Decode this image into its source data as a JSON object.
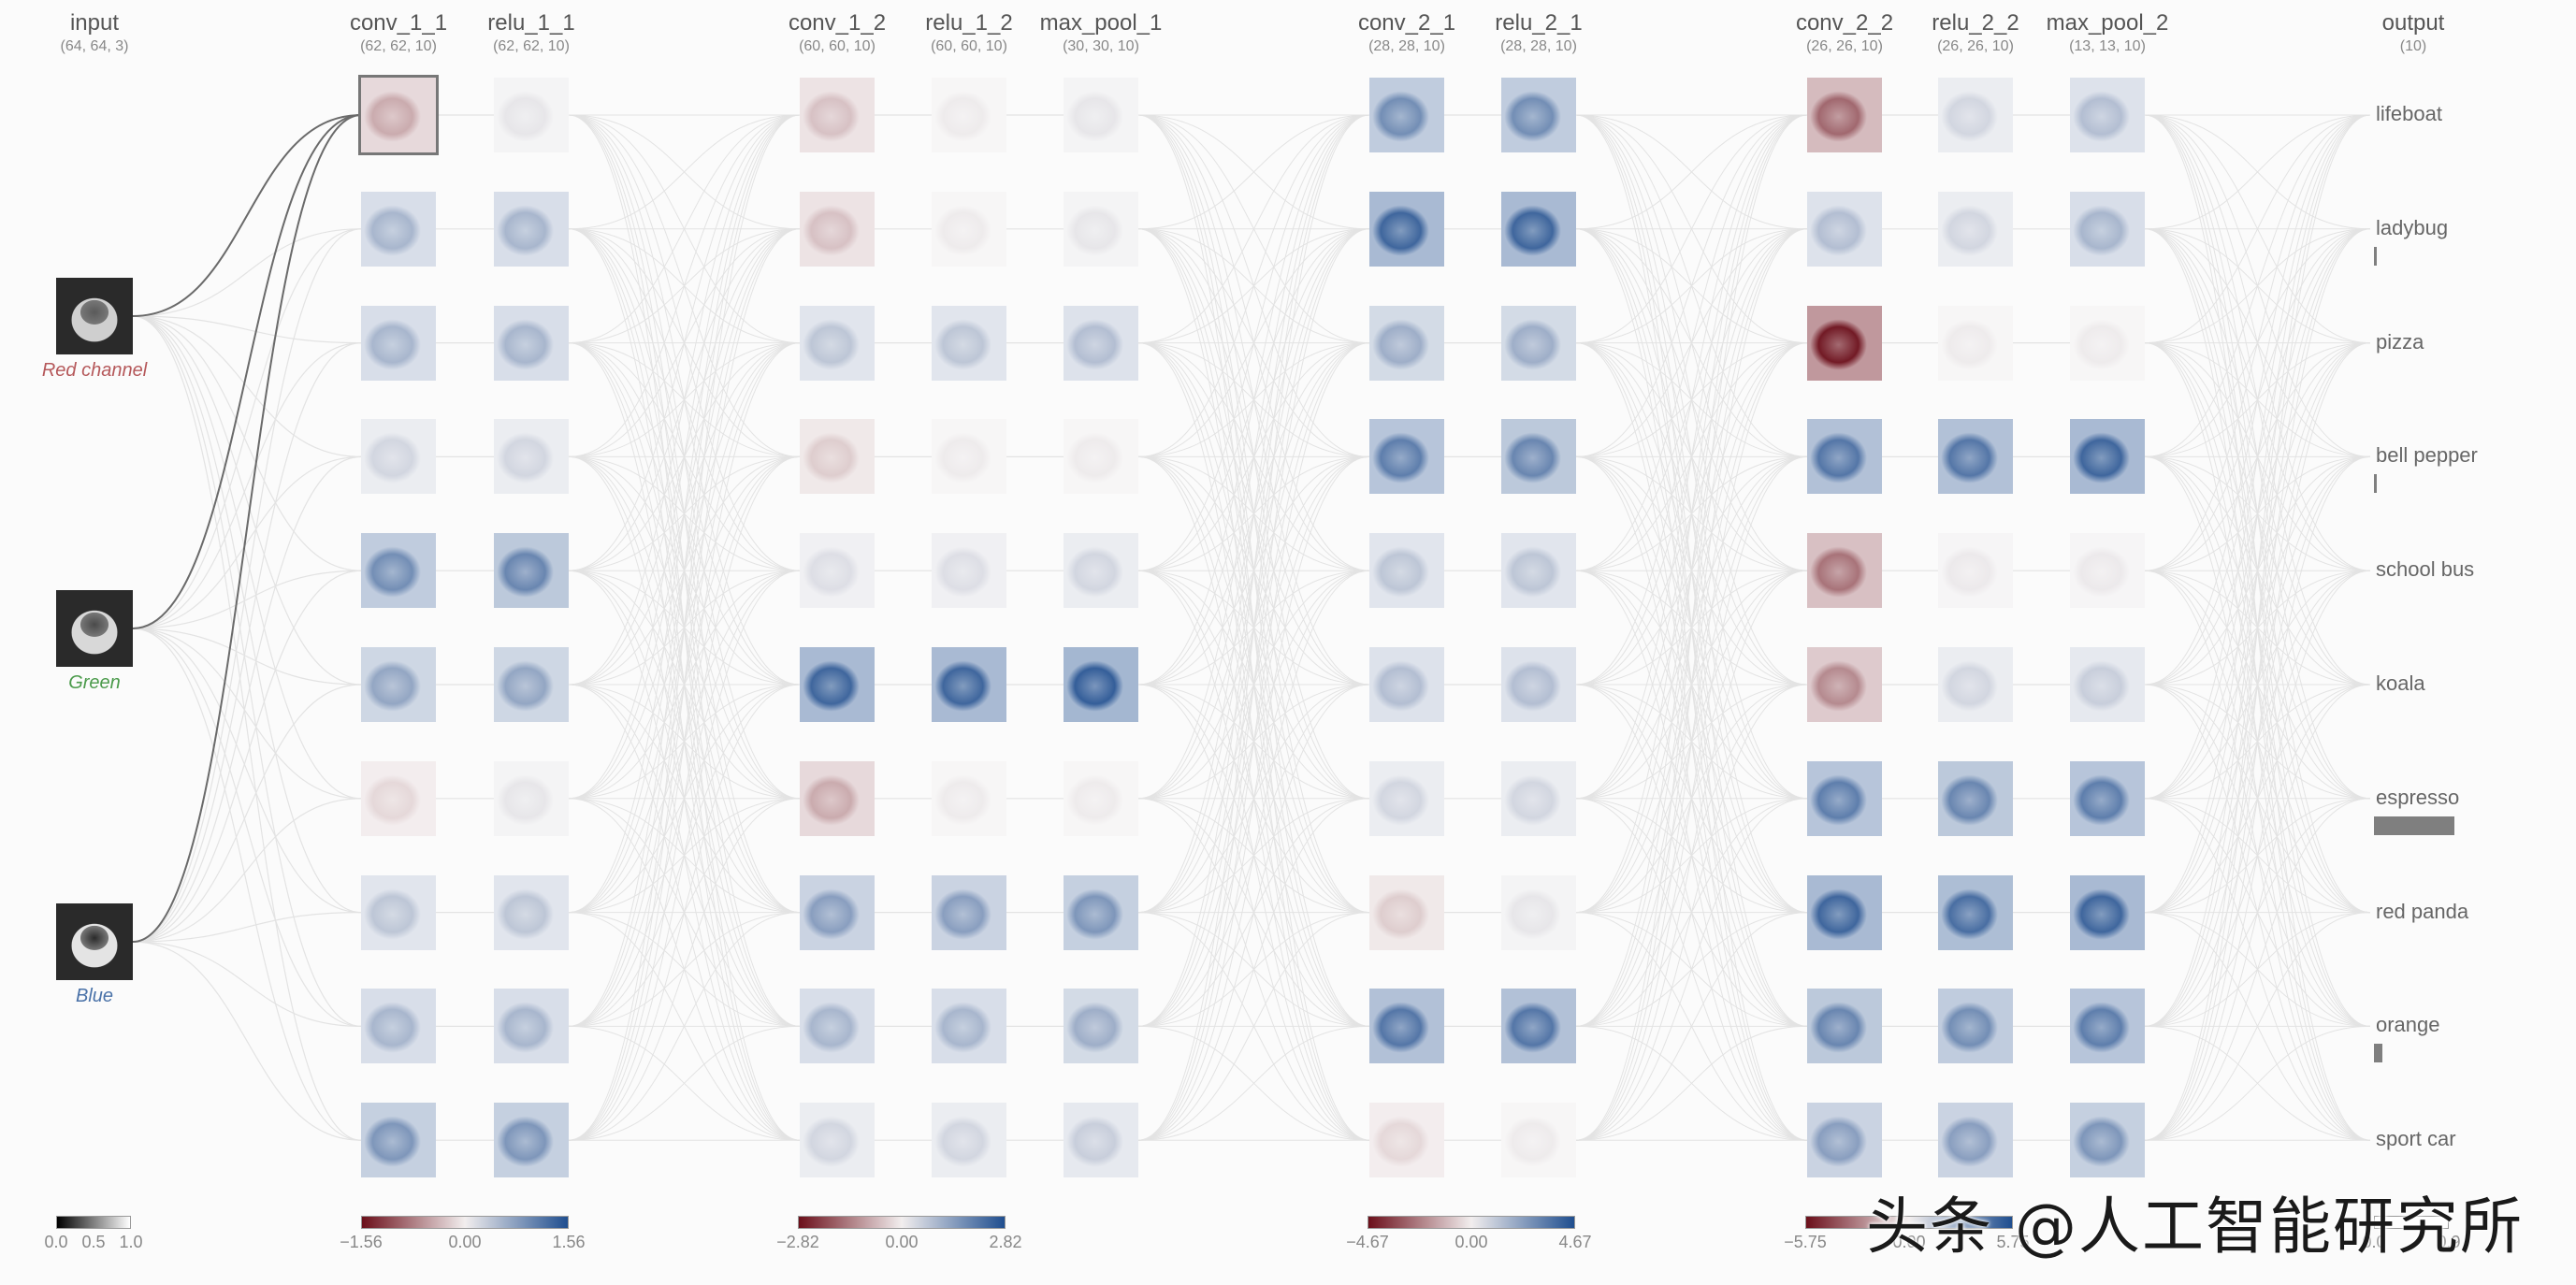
{
  "columns": [
    {
      "id": "input",
      "title": "input",
      "shape": "(64, 64, 3)"
    },
    {
      "id": "conv_1_1",
      "title": "conv_1_1",
      "shape": "(62, 62, 10)"
    },
    {
      "id": "relu_1_1",
      "title": "relu_1_1",
      "shape": "(62, 62, 10)"
    },
    {
      "id": "conv_1_2",
      "title": "conv_1_2",
      "shape": "(60, 60, 10)"
    },
    {
      "id": "relu_1_2",
      "title": "relu_1_2",
      "shape": "(60, 60, 10)"
    },
    {
      "id": "max_pool_1",
      "title": "max_pool_1",
      "shape": "(30, 30, 10)"
    },
    {
      "id": "conv_2_1",
      "title": "conv_2_1",
      "shape": "(28, 28, 10)"
    },
    {
      "id": "relu_2_1",
      "title": "relu_2_1",
      "shape": "(28, 28, 10)"
    },
    {
      "id": "conv_2_2",
      "title": "conv_2_2",
      "shape": "(26, 26, 10)"
    },
    {
      "id": "relu_2_2",
      "title": "relu_2_2",
      "shape": "(26, 26, 10)"
    },
    {
      "id": "max_pool_2",
      "title": "max_pool_2",
      "shape": "(13, 13, 10)"
    },
    {
      "id": "output",
      "title": "output",
      "shape": "(10)"
    }
  ],
  "input_channels": [
    {
      "label": "Red channel",
      "color": "#b5585a"
    },
    {
      "label": "Green",
      "color": "#4a9a4a"
    },
    {
      "label": "Blue",
      "color": "#4a72a8"
    }
  ],
  "feature_values": {
    "conv_1_1": [
      -0.3,
      0.35,
      0.35,
      0.15,
      0.6,
      0.45,
      -0.1,
      0.25,
      0.35,
      0.55
    ],
    "relu_1_1": [
      0.05,
      0.35,
      0.35,
      0.15,
      0.65,
      0.45,
      0.05,
      0.25,
      0.35,
      0.55
    ],
    "conv_1_2": [
      -0.2,
      -0.2,
      0.25,
      -0.15,
      0.1,
      0.85,
      -0.3,
      0.5,
      0.35,
      0.15
    ],
    "relu_1_2": [
      0.02,
      0.02,
      0.25,
      0.02,
      0.1,
      0.85,
      0.02,
      0.5,
      0.35,
      0.15
    ],
    "max_pool_1": [
      0.05,
      0.05,
      0.3,
      0.02,
      0.15,
      0.9,
      0.02,
      0.55,
      0.4,
      0.2
    ],
    "conv_2_1": [
      0.6,
      0.85,
      0.4,
      0.7,
      0.25,
      0.3,
      0.15,
      -0.15,
      0.75,
      -0.1
    ],
    "relu_2_1": [
      0.6,
      0.85,
      0.4,
      0.65,
      0.25,
      0.3,
      0.15,
      0.05,
      0.75,
      0.02
    ],
    "conv_2_2": [
      -0.6,
      0.3,
      -0.95,
      0.75,
      -0.55,
      -0.45,
      0.7,
      0.85,
      0.65,
      0.5
    ],
    "relu_2_2": [
      0.15,
      0.15,
      0.02,
      0.75,
      0.03,
      0.15,
      0.65,
      0.8,
      0.6,
      0.5
    ],
    "max_pool_2": [
      0.3,
      0.35,
      0.02,
      0.85,
      0.03,
      0.2,
      0.7,
      0.85,
      0.7,
      0.55
    ]
  },
  "selected_map": {
    "column": "conv_1_1",
    "index": 0
  },
  "outputs": [
    {
      "label": "lifeboat",
      "prob": 0.0
    },
    {
      "label": "ladybug",
      "prob": 0.002
    },
    {
      "label": "pizza",
      "prob": 0.0
    },
    {
      "label": "bell pepper",
      "prob": 0.02
    },
    {
      "label": "school bus",
      "prob": 0.0
    },
    {
      "label": "koala",
      "prob": 0.0
    },
    {
      "label": "espresso",
      "prob": 0.88
    },
    {
      "label": "red panda",
      "prob": 0.0
    },
    {
      "label": "orange",
      "prob": 0.09
    },
    {
      "label": "sport car",
      "prob": 0.0
    }
  ],
  "scales": [
    {
      "column": "input",
      "min": "0.0",
      "mid": "0.5",
      "max": "1.0"
    },
    {
      "column": "conv_1_1",
      "min": "−1.56",
      "mid": "0.00",
      "max": "1.56"
    },
    {
      "column": "conv_1_2",
      "min": "−2.82",
      "mid": "0.00",
      "max": "2.82"
    },
    {
      "column": "conv_2_1",
      "min": "−4.67",
      "mid": "0.00",
      "max": "4.67"
    },
    {
      "column": "conv_2_2",
      "min": "−5.75",
      "mid": "0.00",
      "max": "5.75"
    },
    {
      "column": "output",
      "min": "0.0",
      "mid": "",
      "max": "0.9"
    }
  ],
  "colors": {
    "negative": "#6b0f1a",
    "neutral": "#f2eeee",
    "positive": "#1f4e8f",
    "link": "#e3e3e3",
    "selected_link": "#6a6a6a",
    "output_bar": "#7f7f7f"
  },
  "watermark": "头条 @人工智能研究所"
}
